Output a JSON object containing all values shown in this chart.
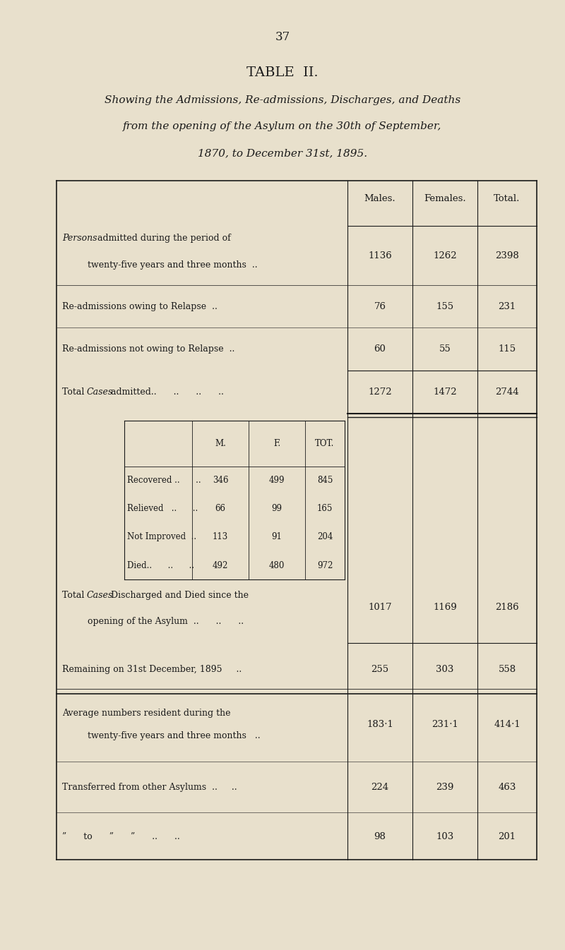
{
  "page_number": "37",
  "title": "TABLE  II.",
  "subtitle_lines": [
    "Showing the Admissions, Re-admissions, Discharges, and Deaths",
    "from the opening of the Asylum on the 30th of September,",
    "1870, to December 31st, 1895."
  ],
  "bg_color": "#e8e0cc",
  "text_color": "#1a1a1a",
  "col_headers": [
    "Males.",
    "Females.",
    "Total."
  ],
  "inner_col_headers": [
    "M.",
    "F.",
    "TOT."
  ],
  "rows_top": [
    {
      "label_lines": [
        "Persons admitted during the period of",
        "twenty-five years and three months  .."
      ],
      "label_italic_word": "Persons",
      "values": [
        "1136",
        "1262",
        "2398"
      ]
    },
    {
      "label_lines": [
        "Re-admissions owing to Relapse  ..      .."
      ],
      "label_italic_word": "",
      "values": [
        "76",
        "155",
        "231"
      ]
    },
    {
      "label_lines": [
        "Re-admissions not owing to Relapse     .."
      ],
      "label_italic_word": "",
      "values": [
        "60",
        "55",
        "115"
      ]
    },
    {
      "label_lines": [
        "Total Cases admitted..      ..      ..      .."
      ],
      "label_italic_word": "Cases",
      "values": [
        "1272",
        "1472",
        "2744"
      ],
      "bold_border": true
    }
  ],
  "inner_rows": [
    {
      "label": "Recovered ..      ..",
      "values": [
        "346",
        "499",
        "845"
      ]
    },
    {
      "label": "Relieved   ..      ..",
      "values": [
        "66",
        "99",
        "165"
      ]
    },
    {
      "label": "Not Improved  ..",
      "values": [
        "113",
        "91",
        "204"
      ]
    },
    {
      "label": "Died..      ..      ..",
      "values": [
        "492",
        "480",
        "972"
      ]
    }
  ],
  "rows_bottom": [
    {
      "label_lines": [
        "Total Cases Discharged and Died since the",
        "opening of the Asylum  ..      ..      .."
      ],
      "label_italic_word": "Cases",
      "values": [
        "1017",
        "1169",
        "2186"
      ]
    },
    {
      "label_lines": [
        "Remaining on 31st December, 1895     .."
      ],
      "label_italic_word": "",
      "values": [
        "255",
        "303",
        "558"
      ]
    }
  ],
  "rows_separated": [
    {
      "label_lines": [
        "Average numbers resident during the",
        "twenty-five years and three months   .."
      ],
      "label_italic_word": "",
      "values": [
        "183·1",
        "231·1",
        "414·1"
      ]
    },
    {
      "label_lines": [
        "Transferred from other Asylums  ..     .."
      ],
      "label_italic_word": "",
      "values": [
        "224",
        "239",
        "463"
      ]
    },
    {
      "label_lines": [
        "”      to      ”      ”      ..      .."
      ],
      "label_italic_word": "",
      "values": [
        "98",
        "103",
        "201"
      ]
    }
  ]
}
